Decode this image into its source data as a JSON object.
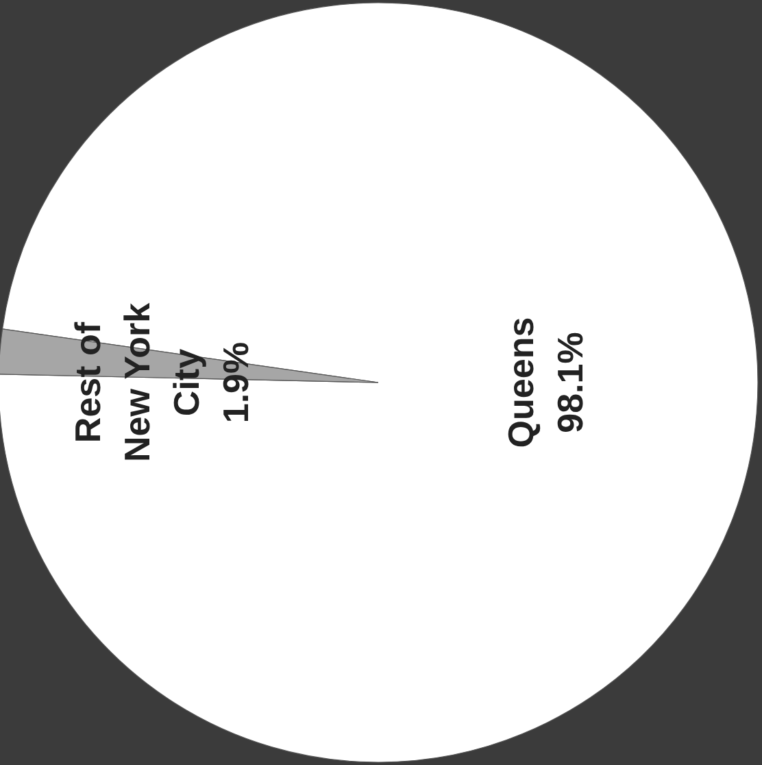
{
  "chart_data": {
    "type": "pie",
    "categories": [
      "Queens",
      "Rest of New York City"
    ],
    "values": [
      98.1,
      1.9
    ],
    "value_labels": [
      "98.1%",
      "1.9%"
    ],
    "colors": [
      "#ffffff",
      "#a6a6a6"
    ]
  }
}
